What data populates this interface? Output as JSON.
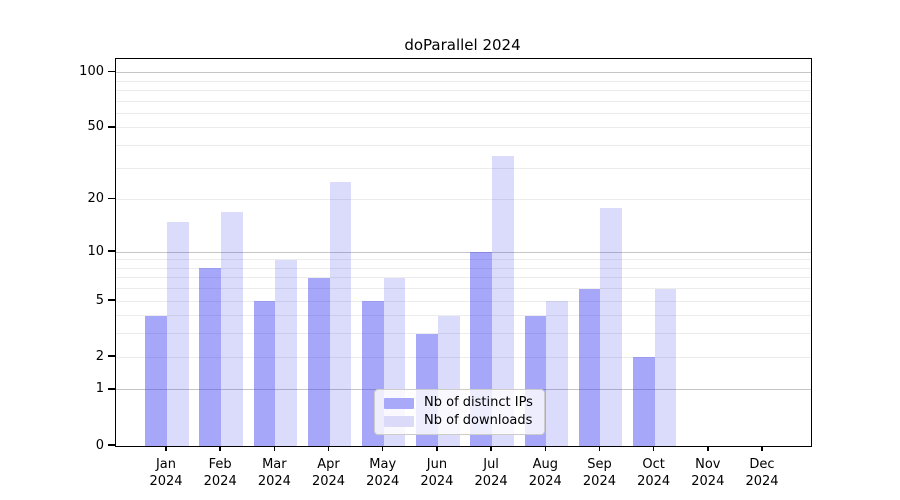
{
  "title": "doParallel 2024",
  "chart_data": {
    "type": "bar",
    "title": "doParallel 2024",
    "categories": [
      "Jan",
      "Feb",
      "Mar",
      "Apr",
      "May",
      "Jun",
      "Jul",
      "Aug",
      "Sep",
      "Oct",
      "Nov",
      "Dec"
    ],
    "category_year": "2024",
    "series": [
      {
        "name": "Nb of distinct IPs",
        "color": "#a9a9fa",
        "values": [
          4,
          8,
          5,
          7,
          5,
          3,
          10,
          4,
          6,
          2,
          0,
          0
        ]
      },
      {
        "name": "Nb of downloads",
        "color": "#dbdbf9",
        "values": [
          15,
          17,
          9,
          25,
          7,
          4,
          35,
          5,
          18,
          6,
          0,
          0
        ]
      }
    ],
    "yscale": "log1p",
    "ylim": [
      0,
      100
    ],
    "y_tick_values": [
      0,
      1,
      2,
      5,
      10,
      20,
      50,
      100
    ],
    "minor_grid_values": [
      2,
      3,
      4,
      5,
      6,
      7,
      8,
      9,
      20,
      30,
      40,
      50,
      60,
      70,
      80,
      90
    ],
    "major_grid_values": [
      1,
      10,
      100
    ],
    "grid": true,
    "legend_position": "bottom-center",
    "axis_color": "#000000",
    "major_grid_color": "#c6c6c6",
    "minor_grid_color": "#ececec",
    "background_color": "#ffffff"
  }
}
